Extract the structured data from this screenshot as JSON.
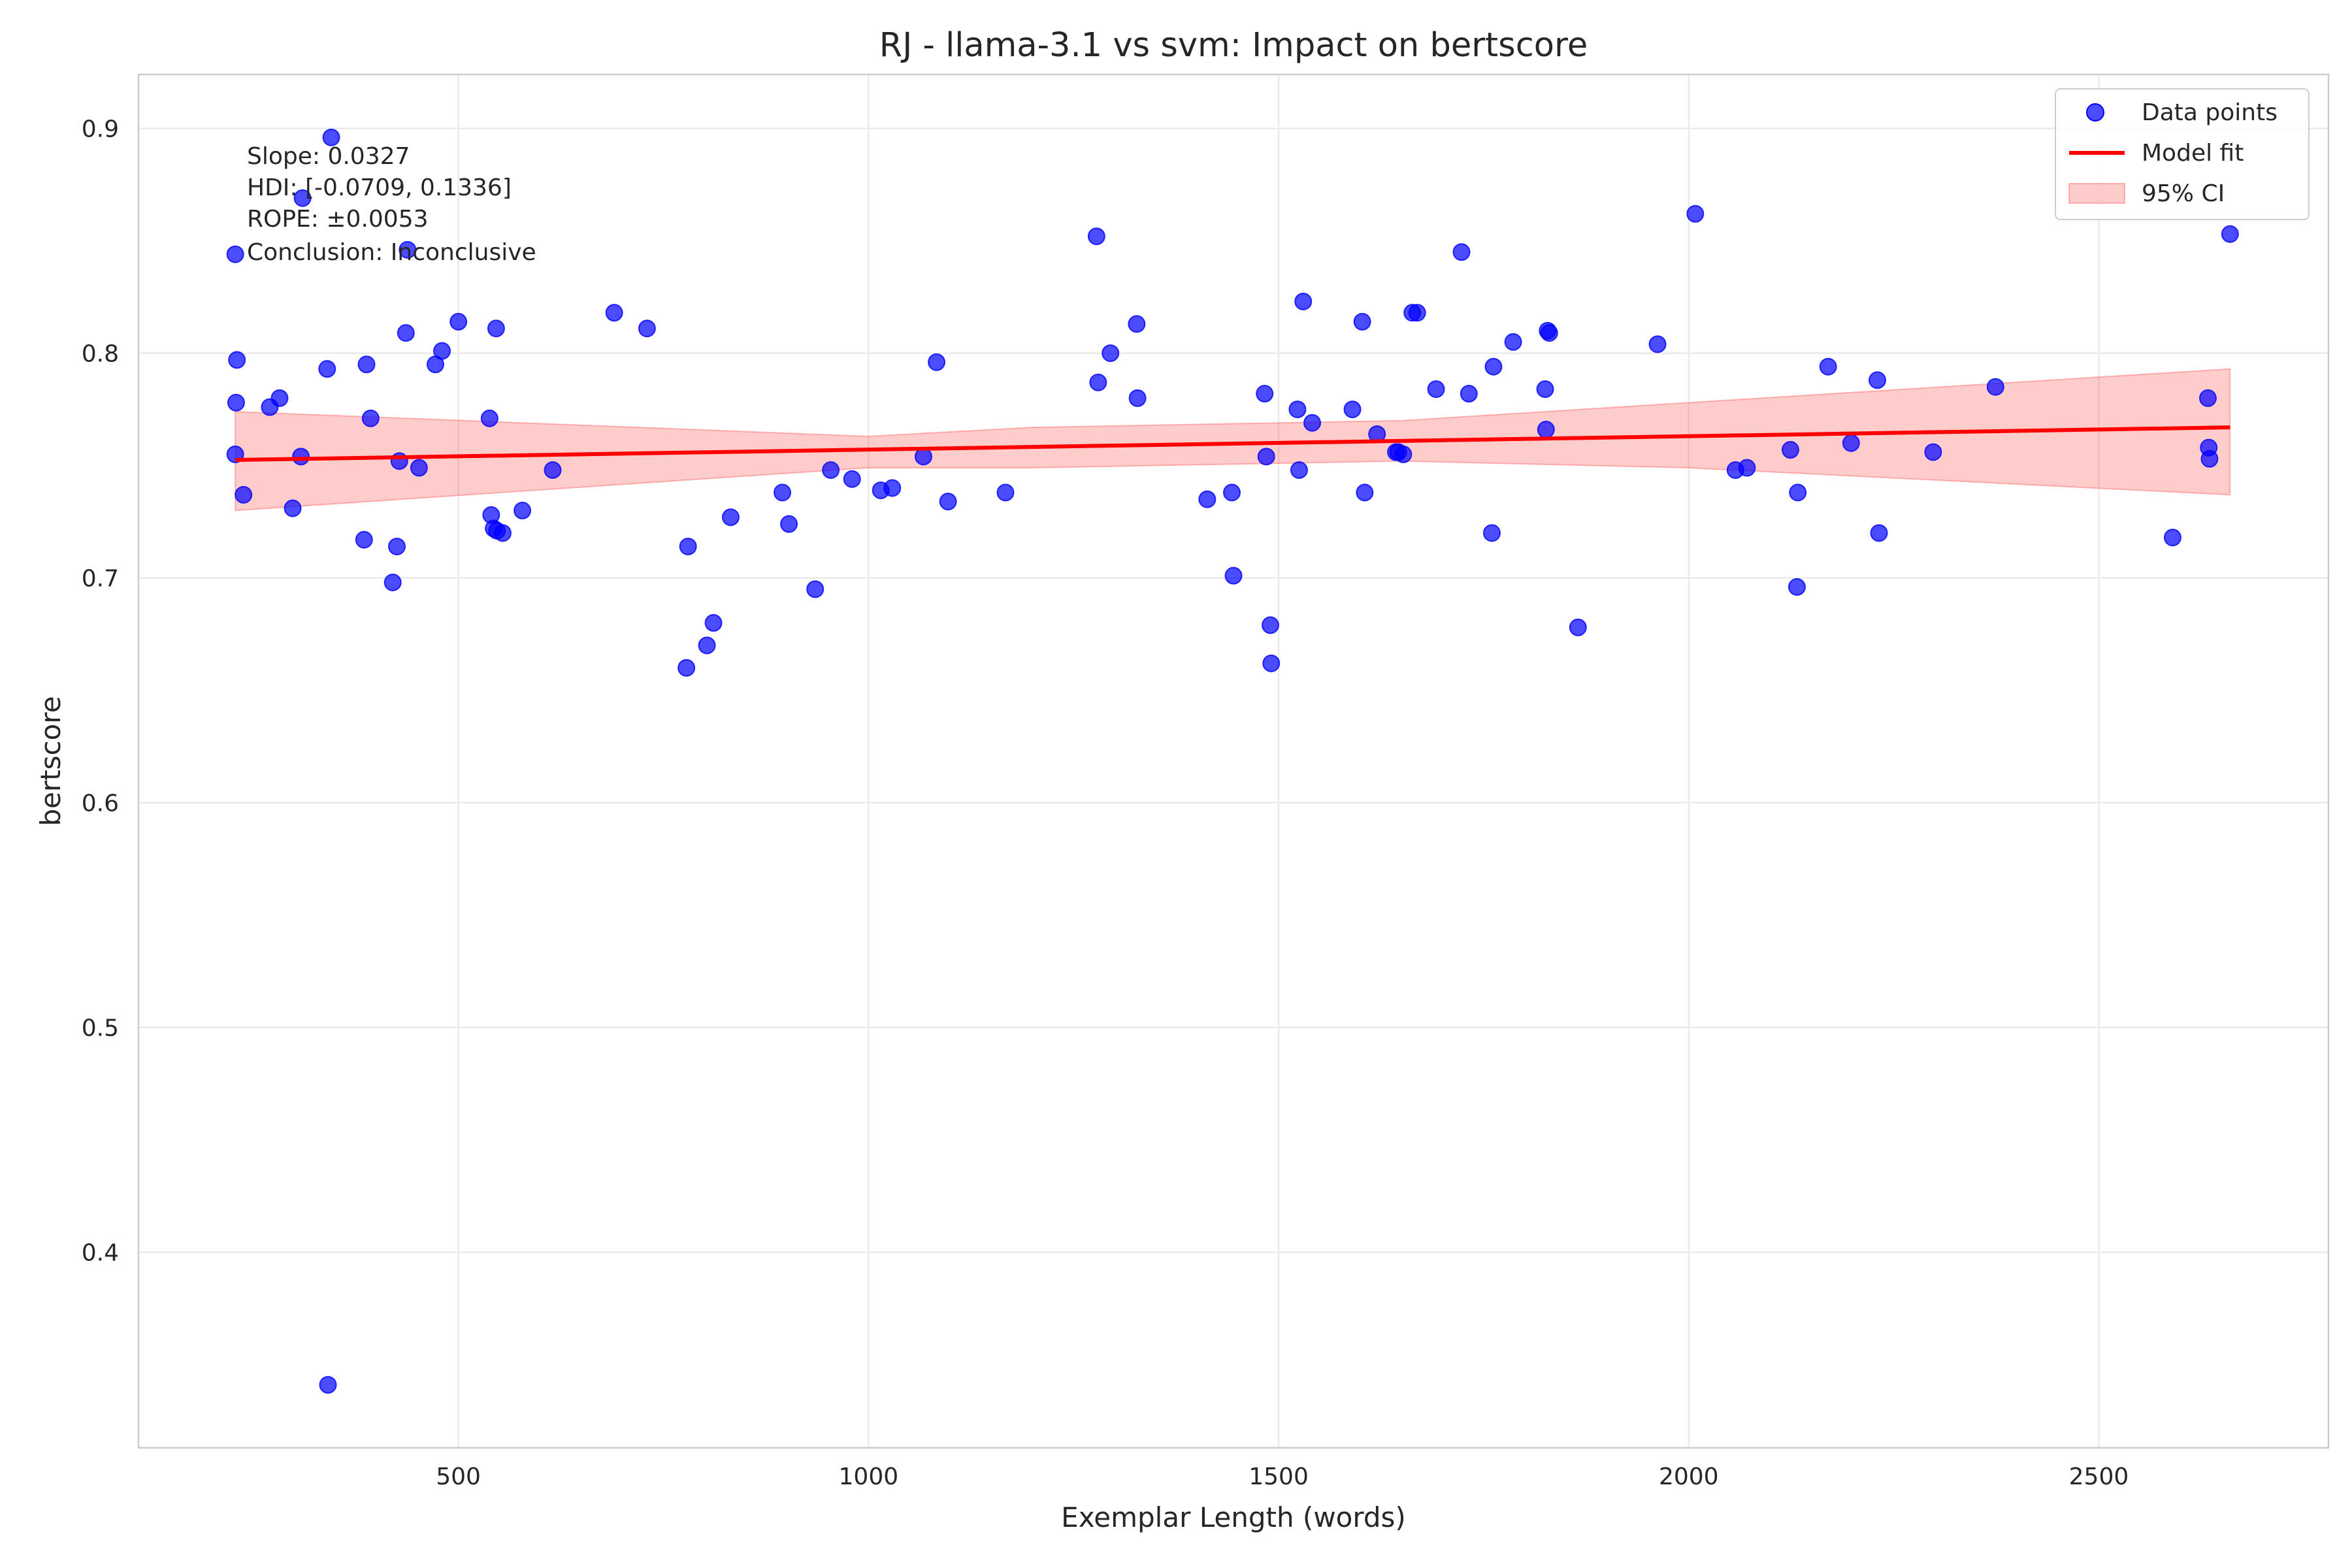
{
  "chart_data": {
    "type": "scatter",
    "title": "RJ - llama-3.1 vs svm: Impact on bertscore",
    "xlabel": "Exemplar Length (words)",
    "ylabel": "bertscore",
    "xlim": [
      110,
      2780
    ],
    "ylim": [
      0.313,
      0.924
    ],
    "xticks": [
      500,
      1000,
      1500,
      2000,
      2500
    ],
    "yticks": [
      0.4,
      0.5,
      0.6,
      0.7,
      0.8,
      0.9
    ],
    "xtick_labels": [
      "500",
      "1000",
      "1500",
      "2000",
      "2500"
    ],
    "ytick_labels": [
      "0.4",
      "0.5",
      "0.6",
      "0.7",
      "0.8",
      "0.9"
    ],
    "grid": true,
    "legend_position": "top-right",
    "legend": [
      "Data points",
      "Model fit",
      "95% CI"
    ],
    "colors": {
      "points": "#0000ff",
      "fit": "#ff0000",
      "ci": "#ff0000"
    },
    "annotation": [
      "Slope: 0.0327",
      "HDI: [-0.0709, 0.1336]",
      "ROPE: ±0.0053",
      "Conclusion: Inconclusive"
    ],
    "fit": {
      "x": [
        228,
        2660
      ],
      "y": [
        0.7525,
        0.767
      ]
    },
    "ci": {
      "x": [
        228,
        1000,
        1200,
        1500,
        1650,
        2000,
        2660
      ],
      "lower": [
        0.73,
        0.749,
        0.749,
        0.751,
        0.752,
        0.749,
        0.737
      ],
      "upper": [
        0.774,
        0.763,
        0.767,
        0.769,
        0.77,
        0.778,
        0.793
      ]
    },
    "points": [
      [
        228,
        0.844
      ],
      [
        230,
        0.797
      ],
      [
        229,
        0.778
      ],
      [
        228,
        0.755
      ],
      [
        238,
        0.737
      ],
      [
        270,
        0.776
      ],
      [
        282,
        0.78
      ],
      [
        298,
        0.731
      ],
      [
        308,
        0.754
      ],
      [
        310,
        0.869
      ],
      [
        340,
        0.793
      ],
      [
        345,
        0.896
      ],
      [
        341,
        0.341
      ],
      [
        385,
        0.717
      ],
      [
        388,
        0.795
      ],
      [
        393,
        0.771
      ],
      [
        420,
        0.698
      ],
      [
        425,
        0.714
      ],
      [
        428,
        0.752
      ],
      [
        436,
        0.809
      ],
      [
        438,
        0.846
      ],
      [
        452,
        0.749
      ],
      [
        472,
        0.795
      ],
      [
        480,
        0.801
      ],
      [
        500,
        0.814
      ],
      [
        538,
        0.771
      ],
      [
        540,
        0.728
      ],
      [
        543,
        0.722
      ],
      [
        547,
        0.721
      ],
      [
        546,
        0.811
      ],
      [
        554,
        0.72
      ],
      [
        578,
        0.73
      ],
      [
        615,
        0.748
      ],
      [
        690,
        0.818
      ],
      [
        730,
        0.811
      ],
      [
        778,
        0.66
      ],
      [
        780,
        0.714
      ],
      [
        803,
        0.67
      ],
      [
        811,
        0.68
      ],
      [
        832,
        0.727
      ],
      [
        895,
        0.738
      ],
      [
        903,
        0.724
      ],
      [
        935,
        0.695
      ],
      [
        954,
        0.748
      ],
      [
        980,
        0.744
      ],
      [
        1015,
        0.739
      ],
      [
        1029,
        0.74
      ],
      [
        1067,
        0.754
      ],
      [
        1083,
        0.796
      ],
      [
        1097,
        0.734
      ],
      [
        1167,
        0.738
      ],
      [
        1278,
        0.852
      ],
      [
        1280,
        0.787
      ],
      [
        1295,
        0.8
      ],
      [
        1327,
        0.813
      ],
      [
        1328,
        0.78
      ],
      [
        1413,
        0.735
      ],
      [
        1443,
        0.738
      ],
      [
        1445,
        0.701
      ],
      [
        1483,
        0.782
      ],
      [
        1485,
        0.754
      ],
      [
        1490,
        0.679
      ],
      [
        1491,
        0.662
      ],
      [
        1523,
        0.775
      ],
      [
        1525,
        0.748
      ],
      [
        1530,
        0.823
      ],
      [
        1541,
        0.769
      ],
      [
        1590,
        0.775
      ],
      [
        1602,
        0.814
      ],
      [
        1605,
        0.738
      ],
      [
        1620,
        0.764
      ],
      [
        1643,
        0.756
      ],
      [
        1646,
        0.756
      ],
      [
        1652,
        0.755
      ],
      [
        1663,
        0.818
      ],
      [
        1669,
        0.818
      ],
      [
        1692,
        0.784
      ],
      [
        1723,
        0.845
      ],
      [
        1732,
        0.782
      ],
      [
        1760,
        0.72
      ],
      [
        1762,
        0.794
      ],
      [
        1786,
        0.805
      ],
      [
        1825,
        0.784
      ],
      [
        1826,
        0.766
      ],
      [
        1828,
        0.81
      ],
      [
        1830,
        0.809
      ],
      [
        1865,
        0.678
      ],
      [
        1962,
        0.804
      ],
      [
        2008,
        0.862
      ],
      [
        2057,
        0.748
      ],
      [
        2071,
        0.749
      ],
      [
        2124,
        0.757
      ],
      [
        2132,
        0.696
      ],
      [
        2133,
        0.738
      ],
      [
        2170,
        0.794
      ],
      [
        2198,
        0.76
      ],
      [
        2230,
        0.788
      ],
      [
        2232,
        0.72
      ],
      [
        2298,
        0.756
      ],
      [
        2374,
        0.785
      ],
      [
        2590,
        0.718
      ],
      [
        2633,
        0.78
      ],
      [
        2634,
        0.758
      ],
      [
        2635,
        0.753
      ],
      [
        2660,
        0.853
      ]
    ]
  }
}
